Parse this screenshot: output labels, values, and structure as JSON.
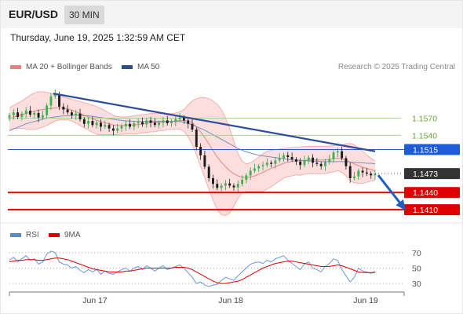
{
  "header": {
    "symbol": "EUR/USD",
    "timeframe": "30 MIN"
  },
  "timestamp": "Thursday, June 19, 2025 1:32:59 AM CET",
  "legend": {
    "ma_bb": {
      "label": "MA 20 + Bollinger Bands",
      "color": "#f08080"
    },
    "ma50": {
      "label": "MA 50",
      "color": "#2f4e8f"
    },
    "credit": "Research © 2025 Trading Central"
  },
  "indicator_legend": {
    "rsi": {
      "label": "RSI",
      "color": "#5b86d6"
    },
    "ma9": {
      "label": "9MA",
      "color": "#e00000"
    }
  },
  "chart_data": {
    "type": "line",
    "price_range": [
      1.1395,
      1.1642
    ],
    "rsi_range": [
      25,
      80
    ],
    "x_ticks": [
      "Jun 17",
      "Jun 18",
      "Jun 19"
    ],
    "price_levels": [
      {
        "value": 1.157,
        "label": "1.1570",
        "kind": "resistance"
      },
      {
        "value": 1.154,
        "label": "1.1540",
        "kind": "resistance"
      },
      {
        "value": 1.1515,
        "label": "1.1515",
        "kind": "pivot"
      },
      {
        "value": 1.1473,
        "label": "1.1473",
        "kind": "current"
      },
      {
        "value": 1.144,
        "label": "1.1440",
        "kind": "support"
      },
      {
        "value": 1.141,
        "label": "1.1410",
        "kind": "support"
      }
    ],
    "rsi_levels": [
      {
        "value": 70,
        "label": "70"
      },
      {
        "value": 50,
        "label": "50"
      },
      {
        "value": 30,
        "label": "30"
      }
    ],
    "candles_close": [
      1.1575,
      1.158,
      1.1572,
      1.1578,
      1.1583,
      1.1576,
      1.1579,
      1.1571,
      1.1575,
      1.1592,
      1.1608,
      1.1612,
      1.159,
      1.1585,
      1.158,
      1.1575,
      1.1578,
      1.1568,
      1.156,
      1.1565,
      1.1558,
      1.1562,
      1.1555,
      1.1558,
      1.1552,
      1.1548,
      1.1552,
      1.1556,
      1.156,
      1.1555,
      1.1561,
      1.1563,
      1.1559,
      1.1566,
      1.1562,
      1.1558,
      1.1562,
      1.1566,
      1.1561,
      1.1564,
      1.1568,
      1.1571,
      1.1566,
      1.156,
      1.155,
      1.152,
      1.1505,
      1.1485,
      1.1465,
      1.1455,
      1.1448,
      1.1452,
      1.1456,
      1.1452,
      1.1449,
      1.1455,
      1.1462,
      1.147,
      1.1478,
      1.1482,
      1.1486,
      1.1488,
      1.1492,
      1.149,
      1.1496,
      1.15,
      1.1505,
      1.1502,
      1.1498,
      1.1494,
      1.1488,
      1.1496,
      1.1501,
      1.1492,
      1.149,
      1.1486,
      1.1493,
      1.1498,
      1.151,
      1.1512,
      1.15,
      1.1486,
      1.1465,
      1.1468,
      1.1478,
      1.1475,
      1.1473,
      1.147,
      1.1473
    ],
    "ma20": [
      1.1568,
      1.1572,
      1.1574,
      1.1576,
      1.1578,
      1.158,
      1.1582,
      1.1584,
      1.1585,
      1.1586,
      1.1587,
      1.1588,
      1.1588,
      1.1587,
      1.1586,
      1.1584,
      1.1581,
      1.1578,
      1.1575,
      1.1572,
      1.1569,
      1.1566,
      1.1564,
      1.1562,
      1.156,
      1.1558,
      1.1557,
      1.1557,
      1.1557,
      1.1558,
      1.1558,
      1.1559,
      1.156,
      1.1561,
      1.1562,
      1.1562,
      1.1563,
      1.1563,
      1.1564,
      1.1564,
      1.1565,
      1.1566,
      1.1566,
      1.1565,
      1.1562,
      1.1555,
      1.1546,
      1.1536,
      1.1525,
      1.1513,
      1.1502,
      1.1493,
      1.1485,
      1.1478,
      1.1473,
      1.1469,
      1.1467,
      1.1466,
      1.1467,
      1.1469,
      1.1472,
      1.1475,
      1.1479,
      1.1482,
      1.1485,
      1.1488,
      1.1491,
      1.1493,
      1.1494,
      1.1495,
      1.1495,
      1.1496,
      1.1497,
      1.1497,
      1.1497,
      1.1497,
      1.1497,
      1.1498,
      1.1499,
      1.15,
      1.1499,
      1.1497,
      1.1493,
      1.149,
      1.1487,
      1.1484,
      1.1482,
      1.148,
      1.1478
    ],
    "bb_upper": [
      1.1588,
      1.1592,
      1.1596,
      1.16,
      1.1605,
      1.161,
      1.1614,
      1.1616,
      1.1616,
      1.1615,
      1.1613,
      1.1611,
      1.1609,
      1.1607,
      1.1605,
      1.1603,
      1.1601,
      1.1599,
      1.1597,
      1.1595,
      1.1593,
      1.159,
      1.1587,
      1.1583,
      1.1579,
      1.1575,
      1.1573,
      1.1572,
      1.1572,
      1.1573,
      1.1574,
      1.1575,
      1.1576,
      1.1577,
      1.1578,
      1.1578,
      1.1578,
      1.1578,
      1.1578,
      1.1578,
      1.1579,
      1.1581,
      1.1585,
      1.1593,
      1.16,
      1.1604,
      1.1606,
      1.1606,
      1.1604,
      1.16,
      1.1594,
      1.1585,
      1.157,
      1.1552,
      1.153,
      1.1508,
      1.1495,
      1.149,
      1.1492,
      1.1496,
      1.1502,
      1.1508,
      1.1512,
      1.1514,
      1.1515,
      1.1516,
      1.1517,
      1.1518,
      1.1519,
      1.1519,
      1.152,
      1.152,
      1.1521,
      1.1521,
      1.1521,
      1.1521,
      1.1521,
      1.1521,
      1.1522,
      1.1522,
      1.1523,
      1.1525,
      1.1526,
      1.1523,
      1.1518,
      1.1512,
      1.1506,
      1.15,
      1.1495
    ],
    "bb_lower": [
      1.1548,
      1.1552,
      1.1552,
      1.1552,
      1.1551,
      1.155,
      1.155,
      1.1552,
      1.1554,
      1.1557,
      1.1561,
      1.1565,
      1.1567,
      1.1567,
      1.1567,
      1.1565,
      1.1561,
      1.1557,
      1.1553,
      1.1549,
      1.1545,
      1.1542,
      1.1541,
      1.1541,
      1.1541,
      1.1541,
      1.1541,
      1.1542,
      1.1542,
      1.1543,
      1.1542,
      1.1543,
      1.1544,
      1.1545,
      1.1546,
      1.1546,
      1.1548,
      1.1548,
      1.155,
      1.155,
      1.1551,
      1.1551,
      1.1547,
      1.1537,
      1.1524,
      1.1506,
      1.1486,
      1.1466,
      1.1446,
      1.1426,
      1.141,
      1.1401,
      1.14,
      1.1404,
      1.1416,
      1.143,
      1.1439,
      1.1442,
      1.1442,
      1.1442,
      1.1442,
      1.1442,
      1.1446,
      1.145,
      1.1455,
      1.146,
      1.1465,
      1.1468,
      1.1469,
      1.1471,
      1.147,
      1.1472,
      1.1473,
      1.1473,
      1.1473,
      1.1473,
      1.1473,
      1.1475,
      1.1476,
      1.1478,
      1.1475,
      1.1469,
      1.146,
      1.1457,
      1.1456,
      1.1456,
      1.1458,
      1.146,
      1.1461
    ],
    "ma50": [
      1.1548,
      1.1551,
      1.1554,
      1.1557,
      1.156,
      1.1562,
      1.1564,
      1.1566,
      1.1568,
      1.157,
      1.1571,
      1.1572,
      1.1573,
      1.1574,
      1.1574,
      1.1575,
      1.1575,
      1.1575,
      1.1574,
      1.1574,
      1.1573,
      1.1572,
      1.1571,
      1.157,
      1.1569,
      1.1568,
      1.1567,
      1.1566,
      1.1565,
      1.1565,
      1.1564,
      1.1564,
      1.1564,
      1.1564,
      1.1564,
      1.1564,
      1.1564,
      1.1564,
      1.1564,
      1.1564,
      1.1564,
      1.1564,
      1.1563,
      1.1561,
      1.1558,
      1.1555,
      1.1552,
      1.1549,
      1.1545,
      1.1541,
      1.1537,
      1.1533,
      1.1529,
      1.1525,
      1.1521,
      1.1517,
      1.1514,
      1.1511,
      1.1509,
      1.1507,
      1.1505,
      1.1504,
      1.1503,
      1.1502,
      1.1501,
      1.15,
      1.1499,
      1.1498,
      1.1497,
      1.1497,
      1.1496,
      1.1496,
      1.1495,
      1.1495,
      1.1495,
      1.1494,
      1.1494,
      1.1494,
      1.1494,
      1.1494,
      1.1494,
      1.1494,
      1.1493,
      1.1493,
      1.1492,
      1.1492,
      1.1491,
      1.1491,
      1.149
    ],
    "trendline": {
      "from": [
        0.12,
        1.1613
      ],
      "to": [
        1.0,
        1.1512
      ]
    },
    "forecast_arrow": {
      "from": [
        1.0,
        1.1473
      ],
      "to": [
        1.08,
        1.1412
      ]
    },
    "rsi": [
      60,
      64,
      58,
      62,
      66,
      60,
      62,
      55,
      58,
      68,
      72,
      70,
      58,
      55,
      54,
      50,
      52,
      47,
      44,
      48,
      45,
      48,
      42,
      46,
      43,
      42,
      45,
      48,
      50,
      46,
      50,
      52,
      48,
      53,
      50,
      46,
      50,
      53,
      48,
      50,
      52,
      54,
      50,
      44,
      38,
      30,
      32,
      28,
      26,
      28,
      29,
      34,
      38,
      36,
      34,
      40,
      45,
      50,
      55,
      57,
      58,
      56,
      60,
      58,
      62,
      64,
      66,
      60,
      56,
      52,
      48,
      55,
      58,
      50,
      48,
      45,
      52,
      56,
      62,
      60,
      48,
      40,
      32,
      38,
      50,
      46,
      45,
      43,
      46
    ],
    "rsi_ma9": [
      58,
      59,
      60,
      60,
      61,
      61,
      61,
      60,
      60,
      61,
      62,
      63,
      63,
      62,
      61,
      59,
      57,
      55,
      53,
      51,
      49,
      48,
      47,
      46,
      45,
      45,
      45,
      45,
      46,
      46,
      47,
      48,
      49,
      50,
      50,
      50,
      50,
      50,
      50,
      50,
      51,
      51,
      51,
      50,
      48,
      45,
      42,
      39,
      36,
      33,
      31,
      30,
      30,
      31,
      32,
      33,
      35,
      38,
      41,
      44,
      47,
      50,
      52,
      54,
      56,
      57,
      58,
      59,
      59,
      58,
      57,
      56,
      55,
      54,
      53,
      52,
      52,
      52,
      53,
      54,
      53,
      51,
      49,
      47,
      45,
      44,
      44,
      44,
      44
    ]
  }
}
